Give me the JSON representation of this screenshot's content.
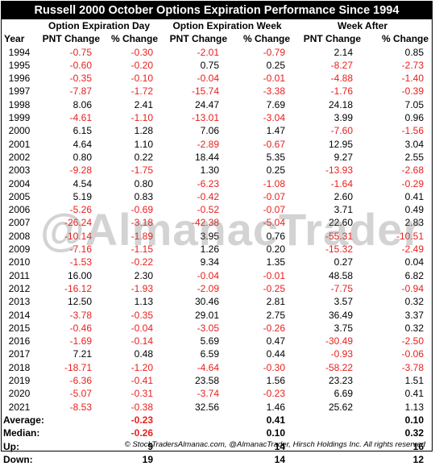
{
  "title": "Russell 2000 October Options Expiration Performance Since 1994",
  "groups": [
    "Option Expiration Day",
    "Option Expiration Week",
    "Week After"
  ],
  "headers": [
    "Year",
    "PNT Change",
    "% Change",
    "PNT Change",
    "% Change",
    "PNT Change",
    "% Change"
  ],
  "rows": [
    [
      "1994",
      "-0.75",
      "-0.30",
      "-2.01",
      "-0.79",
      "2.14",
      "0.85"
    ],
    [
      "1995",
      "-0.60",
      "-0.20",
      "0.75",
      "0.25",
      "-8.27",
      "-2.73"
    ],
    [
      "1996",
      "-0.35",
      "-0.10",
      "-0.04",
      "-0.01",
      "-4.88",
      "-1.40"
    ],
    [
      "1997",
      "-7.87",
      "-1.72",
      "-15.74",
      "-3.38",
      "-1.76",
      "-0.39"
    ],
    [
      "1998",
      "8.06",
      "2.41",
      "24.47",
      "7.69",
      "24.18",
      "7.05"
    ],
    [
      "1999",
      "-4.61",
      "-1.10",
      "-13.01",
      "-3.04",
      "3.99",
      "0.96"
    ],
    [
      "2000",
      "6.15",
      "1.28",
      "7.06",
      "1.47",
      "-7.60",
      "-1.56"
    ],
    [
      "2001",
      "4.64",
      "1.10",
      "-2.89",
      "-0.67",
      "12.95",
      "3.04"
    ],
    [
      "2002",
      "0.80",
      "0.22",
      "18.44",
      "5.35",
      "9.27",
      "2.55"
    ],
    [
      "2003",
      "-9.28",
      "-1.75",
      "1.30",
      "0.25",
      "-13.93",
      "-2.68"
    ],
    [
      "2004",
      "4.54",
      "0.80",
      "-6.23",
      "-1.08",
      "-1.64",
      "-0.29"
    ],
    [
      "2005",
      "5.19",
      "0.83",
      "-0.42",
      "-0.07",
      "2.60",
      "0.41"
    ],
    [
      "2006",
      "-5.26",
      "-0.69",
      "-0.52",
      "-0.07",
      "3.71",
      "0.49"
    ],
    [
      "2007",
      "-26.24",
      "-3.18",
      "-42.38",
      "-5.04",
      "22.60",
      "2.83"
    ],
    [
      "2008",
      "-10.14",
      "-1.89",
      "3.95",
      "0.76",
      "-55.31",
      "-10.51"
    ],
    [
      "2009",
      "-7.16",
      "-1.15",
      "1.26",
      "0.20",
      "-15.32",
      "-2.49"
    ],
    [
      "2010",
      "-1.53",
      "-0.22",
      "9.34",
      "1.35",
      "0.27",
      "0.04"
    ],
    [
      "2011",
      "16.00",
      "2.30",
      "-0.04",
      "-0.01",
      "48.58",
      "6.82"
    ],
    [
      "2012",
      "-16.12",
      "-1.93",
      "-2.09",
      "-0.25",
      "-7.75",
      "-0.94"
    ],
    [
      "2013",
      "12.50",
      "1.13",
      "30.46",
      "2.81",
      "3.57",
      "0.32"
    ],
    [
      "2014",
      "-3.78",
      "-0.35",
      "29.01",
      "2.75",
      "36.49",
      "3.37"
    ],
    [
      "2015",
      "-0.46",
      "-0.04",
      "-3.05",
      "-0.26",
      "3.75",
      "0.32"
    ],
    [
      "2016",
      "-1.69",
      "-0.14",
      "5.69",
      "0.47",
      "-30.49",
      "-2.50"
    ],
    [
      "2017",
      "7.21",
      "0.48",
      "6.59",
      "0.44",
      "-0.93",
      "-0.06"
    ],
    [
      "2018",
      "-18.71",
      "-1.20",
      "-4.64",
      "-0.30",
      "-58.22",
      "-3.78"
    ],
    [
      "2019",
      "-6.36",
      "-0.41",
      "23.58",
      "1.56",
      "23.23",
      "1.51"
    ],
    [
      "2020",
      "-5.07",
      "-0.31",
      "-3.74",
      "-0.23",
      "6.69",
      "0.41"
    ],
    [
      "2021",
      "-8.53",
      "-0.38",
      "32.56",
      "1.46",
      "25.62",
      "1.13"
    ]
  ],
  "stats": [
    {
      "label": "Average:",
      "day": "-0.23",
      "week": "0.41",
      "after": "0.10"
    },
    {
      "label": "Median:",
      "day": "-0.26",
      "week": "0.10",
      "after": "0.32"
    },
    {
      "label": "Up:",
      "day": "9",
      "week": "14",
      "after": "16"
    },
    {
      "label": "Down:",
      "day": "19",
      "week": "14",
      "after": "12"
    }
  ],
  "watermark": "@AlmanacTrader",
  "footer": "© StockTradersAlmanac.com, @AlmanacTrader, Hirsch Holdings Inc. All rights reserved",
  "colors": {
    "negative": "#e8201c",
    "positive": "#000000",
    "title_bg": "#000000",
    "title_fg": "#ffffff"
  }
}
